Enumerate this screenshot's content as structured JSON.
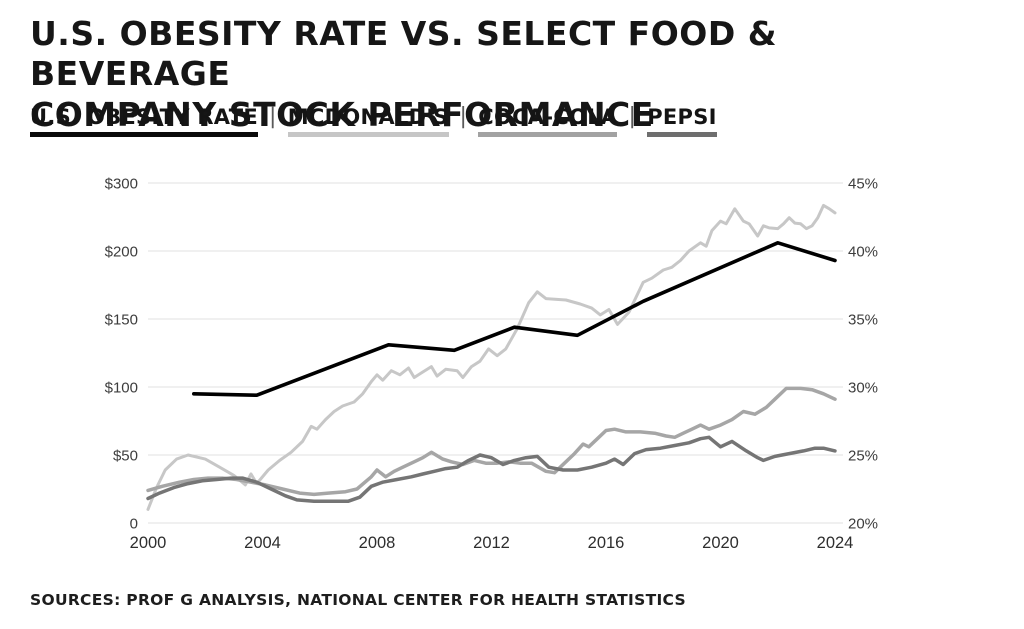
{
  "header": {
    "title_line1": "U.S. OBESITY RATE VS. SELECT FOOD & BEVERAGE",
    "title_line2": "COMPANY STOCK PERFORMANCE"
  },
  "legend": {
    "separator": "|",
    "items": [
      {
        "label": "U.S. OBESITY RATE",
        "color": "#0a0a0a"
      },
      {
        "label": "MCDONALD'S",
        "color": "#c6c6c6"
      },
      {
        "label": "COCA-COLA",
        "color": "#a2a2a2"
      },
      {
        "label": "PEPSI",
        "color": "#6e6e6e"
      }
    ]
  },
  "chart_data": {
    "type": "line",
    "grid": true,
    "x_axis": {
      "tick_labels": [
        "2000",
        "2004",
        "2008",
        "2012",
        "2016",
        "2020",
        "2024"
      ],
      "tick_values": [
        2000,
        2004,
        2008,
        2012,
        2016,
        2020,
        2024
      ],
      "range": [
        2000,
        2024
      ]
    },
    "left_axis": {
      "tick_labels": [
        "$300",
        "$200",
        "$150",
        "$100",
        "$50",
        "0"
      ],
      "tick_values": [
        300,
        200,
        150,
        100,
        50,
        0
      ]
    },
    "right_axis": {
      "tick_labels": [
        "45%",
        "40%",
        "35%",
        "30%",
        "25%",
        "20%"
      ],
      "tick_values": [
        45,
        40,
        35,
        30,
        25,
        20
      ],
      "range": [
        20,
        45
      ]
    },
    "series": [
      {
        "name": "MCDONALD'S",
        "axis": "left",
        "color": "#c7c7c7",
        "width": 3,
        "points": [
          [
            2000,
            10
          ],
          [
            2000.3,
            26
          ],
          [
            2000.6,
            39
          ],
          [
            2001,
            47
          ],
          [
            2001.4,
            50
          ],
          [
            2002,
            47
          ],
          [
            2002.5,
            41
          ],
          [
            2003,
            35
          ],
          [
            2003.4,
            28
          ],
          [
            2003.6,
            36
          ],
          [
            2003.8,
            29
          ],
          [
            2004.2,
            39
          ],
          [
            2004.6,
            46
          ],
          [
            2005,
            52
          ],
          [
            2005.4,
            60
          ],
          [
            2005.7,
            71
          ],
          [
            2005.9,
            69
          ],
          [
            2006.2,
            76
          ],
          [
            2006.5,
            82
          ],
          [
            2006.8,
            86
          ],
          [
            2007.2,
            89
          ],
          [
            2007.5,
            95
          ],
          [
            2007.8,
            104
          ],
          [
            2008,
            109
          ],
          [
            2008.2,
            105
          ],
          [
            2008.5,
            112
          ],
          [
            2008.8,
            109
          ],
          [
            2009.1,
            114
          ],
          [
            2009.3,
            107
          ],
          [
            2009.6,
            111
          ],
          [
            2009.9,
            115
          ],
          [
            2010.1,
            108
          ],
          [
            2010.4,
            113
          ],
          [
            2010.8,
            112
          ],
          [
            2011,
            107
          ],
          [
            2011.3,
            115
          ],
          [
            2011.6,
            119
          ],
          [
            2011.9,
            128
          ],
          [
            2012.2,
            123
          ],
          [
            2012.5,
            128
          ],
          [
            2012.9,
            143
          ],
          [
            2013.3,
            162
          ],
          [
            2013.6,
            170
          ],
          [
            2013.9,
            165
          ],
          [
            2014.6,
            164
          ],
          [
            2015.1,
            161
          ],
          [
            2015.5,
            158
          ],
          [
            2015.8,
            153
          ],
          [
            2016.1,
            157
          ],
          [
            2016.4,
            146
          ],
          [
            2016.8,
            155
          ],
          [
            2017.3,
            177
          ],
          [
            2017.6,
            180
          ],
          [
            2018,
            186
          ],
          [
            2018.3,
            188
          ],
          [
            2018.6,
            193
          ],
          [
            2018.9,
            200
          ],
          [
            2019.3,
            212
          ],
          [
            2019.5,
            207
          ],
          [
            2019.7,
            230
          ],
          [
            2020,
            244
          ],
          [
            2020.2,
            240
          ],
          [
            2020.5,
            262
          ],
          [
            2020.8,
            244
          ],
          [
            2021,
            240
          ],
          [
            2021.3,
            222
          ],
          [
            2021.5,
            237
          ],
          [
            2021.7,
            234
          ],
          [
            2022,
            233
          ],
          [
            2022.2,
            240
          ],
          [
            2022.4,
            249
          ],
          [
            2022.6,
            241
          ],
          [
            2022.8,
            240
          ],
          [
            2023,
            233
          ],
          [
            2023.2,
            237
          ],
          [
            2023.4,
            249
          ],
          [
            2023.6,
            267
          ],
          [
            2023.8,
            262
          ],
          [
            2024,
            256
          ]
        ]
      },
      {
        "name": "COCA-COLA",
        "axis": "left",
        "color": "#a6a6a6",
        "width": 3.5,
        "points": [
          [
            2000,
            24
          ],
          [
            2000.5,
            27
          ],
          [
            2001.1,
            30
          ],
          [
            2001.6,
            32
          ],
          [
            2002.1,
            33
          ],
          [
            2002.6,
            33
          ],
          [
            2003.1,
            32
          ],
          [
            2003.6,
            30
          ],
          [
            2004.1,
            28
          ],
          [
            2004.7,
            25
          ],
          [
            2005.3,
            22
          ],
          [
            2005.8,
            21
          ],
          [
            2006.3,
            22
          ],
          [
            2006.9,
            23
          ],
          [
            2007.3,
            25
          ],
          [
            2007.8,
            34
          ],
          [
            2008,
            39
          ],
          [
            2008.3,
            34
          ],
          [
            2008.6,
            38
          ],
          [
            2008.9,
            41
          ],
          [
            2009.3,
            45
          ],
          [
            2009.6,
            48
          ],
          [
            2009.9,
            52
          ],
          [
            2010.3,
            47
          ],
          [
            2010.6,
            45
          ],
          [
            2011,
            43
          ],
          [
            2011.4,
            46
          ],
          [
            2011.8,
            44
          ],
          [
            2012.2,
            44
          ],
          [
            2012.6,
            45
          ],
          [
            2013,
            44
          ],
          [
            2013.4,
            44
          ],
          [
            2013.9,
            38
          ],
          [
            2014.2,
            37
          ],
          [
            2014.6,
            45
          ],
          [
            2014.9,
            51
          ],
          [
            2015.2,
            58
          ],
          [
            2015.4,
            56
          ],
          [
            2015.7,
            62
          ],
          [
            2016,
            68
          ],
          [
            2016.3,
            69
          ],
          [
            2016.7,
            67
          ],
          [
            2017.2,
            67
          ],
          [
            2017.7,
            66
          ],
          [
            2018.1,
            64
          ],
          [
            2018.4,
            63
          ],
          [
            2018.7,
            66
          ],
          [
            2019,
            69
          ],
          [
            2019.3,
            72
          ],
          [
            2019.6,
            69
          ],
          [
            2020,
            72
          ],
          [
            2020.4,
            76
          ],
          [
            2020.8,
            82
          ],
          [
            2021.2,
            80
          ],
          [
            2021.6,
            85
          ],
          [
            2021.9,
            91
          ],
          [
            2022.3,
            99
          ],
          [
            2022.8,
            99
          ],
          [
            2023.2,
            98
          ],
          [
            2023.6,
            95
          ],
          [
            2024,
            91
          ]
        ]
      },
      {
        "name": "PEPSI",
        "axis": "left",
        "color": "#757575",
        "width": 3.5,
        "points": [
          [
            2000,
            18
          ],
          [
            2000.4,
            22
          ],
          [
            2000.9,
            26
          ],
          [
            2001.4,
            29
          ],
          [
            2001.9,
            31
          ],
          [
            2002.4,
            32
          ],
          [
            2002.9,
            33
          ],
          [
            2003.3,
            33
          ],
          [
            2003.8,
            30
          ],
          [
            2004.3,
            25
          ],
          [
            2004.8,
            20
          ],
          [
            2005.2,
            17
          ],
          [
            2005.8,
            16
          ],
          [
            2006.4,
            16
          ],
          [
            2007,
            16
          ],
          [
            2007.4,
            19
          ],
          [
            2007.8,
            27
          ],
          [
            2008.2,
            30
          ],
          [
            2008.7,
            32
          ],
          [
            2009.2,
            34
          ],
          [
            2009.6,
            36
          ],
          [
            2010,
            38
          ],
          [
            2010.4,
            40
          ],
          [
            2010.8,
            41
          ],
          [
            2011.2,
            46
          ],
          [
            2011.6,
            50
          ],
          [
            2012,
            48
          ],
          [
            2012.4,
            43
          ],
          [
            2012.8,
            46
          ],
          [
            2013.2,
            48
          ],
          [
            2013.6,
            49
          ],
          [
            2014,
            41
          ],
          [
            2014.5,
            39
          ],
          [
            2015,
            39
          ],
          [
            2015.5,
            41
          ],
          [
            2016,
            44
          ],
          [
            2016.3,
            47
          ],
          [
            2016.6,
            43
          ],
          [
            2017,
            51
          ],
          [
            2017.4,
            54
          ],
          [
            2017.9,
            55
          ],
          [
            2018.4,
            57
          ],
          [
            2018.9,
            59
          ],
          [
            2019.3,
            62
          ],
          [
            2019.6,
            63
          ],
          [
            2020,
            56
          ],
          [
            2020.4,
            60
          ],
          [
            2020.9,
            53
          ],
          [
            2021.3,
            48
          ],
          [
            2021.5,
            46
          ],
          [
            2021.9,
            49
          ],
          [
            2022.4,
            51
          ],
          [
            2022.9,
            53
          ],
          [
            2023.3,
            55
          ],
          [
            2023.6,
            55
          ],
          [
            2024,
            53
          ]
        ]
      },
      {
        "name": "U.S. OBESITY RATE",
        "axis": "right",
        "color": "#000000",
        "width": 3.6,
        "points": [
          [
            2001.6,
            29.5
          ],
          [
            2003.8,
            29.4
          ],
          [
            2008.4,
            33.1
          ],
          [
            2010.7,
            32.7
          ],
          [
            2012.8,
            34.4
          ],
          [
            2015,
            33.8
          ],
          [
            2017.3,
            36.3
          ],
          [
            2022,
            40.6
          ],
          [
            2024,
            39.3
          ]
        ]
      }
    ]
  },
  "footer": {
    "sources": "SOURCES: PROF G ANALYSIS, NATIONAL CENTER FOR HEALTH STATISTICS"
  }
}
